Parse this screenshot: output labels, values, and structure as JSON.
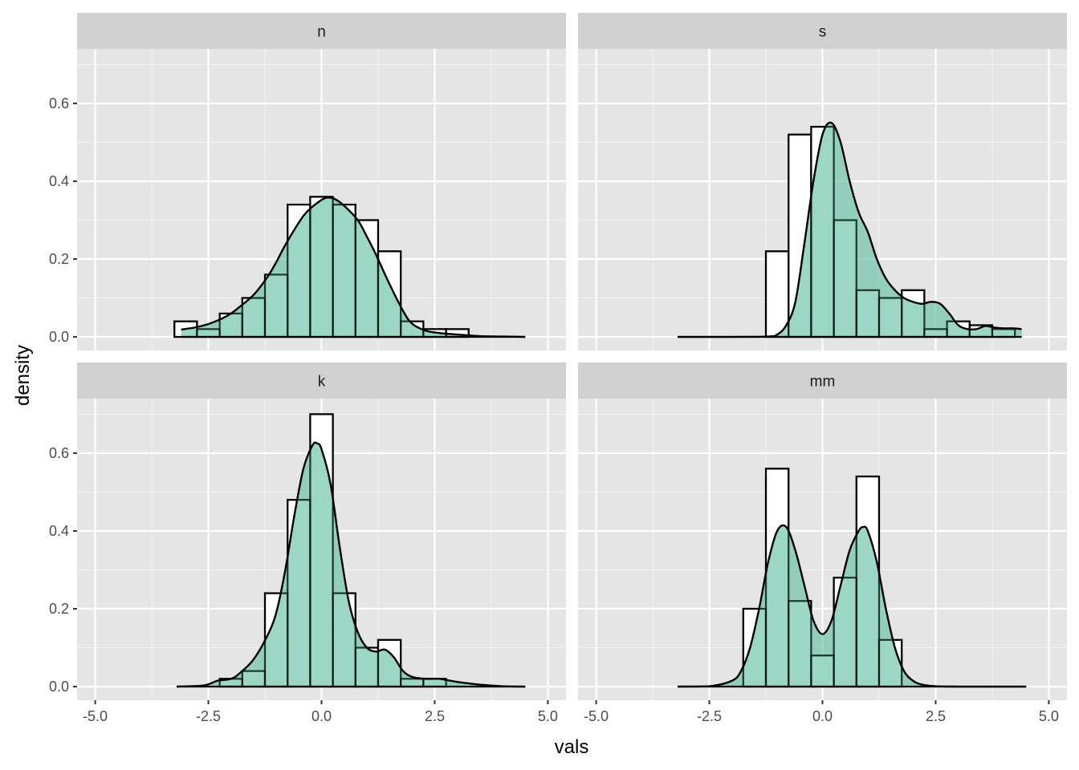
{
  "chart_data": {
    "type": "histogram-density-facets",
    "xlabel": "vals",
    "ylabel": "density",
    "xlim": [
      -5.4,
      5.4
    ],
    "ylim": [
      -0.035,
      0.74
    ],
    "x_ticks": [
      -5,
      -2.5,
      0,
      2.5,
      5
    ],
    "x_tick_labels": [
      "-5.0",
      "-2.5",
      "0.0",
      "2.5",
      "5.0"
    ],
    "y_ticks": [
      0,
      0.2,
      0.4,
      0.6
    ],
    "y_tick_labels": [
      "0.0",
      "0.2",
      "0.4",
      "0.6"
    ],
    "bin_width": 0.5,
    "bin_starts": [
      -3.25,
      -2.75,
      -2.25,
      -1.75,
      -1.25,
      -0.75,
      -0.25,
      0.25,
      0.75,
      1.25,
      1.75,
      2.25,
      2.75,
      3.25,
      3.75,
      4.25
    ],
    "density_fill": "#66c2a5",
    "density_fill_opacity": 0.65,
    "panel_background": "#e5e5e5",
    "strip_background": "#d1d1d1",
    "panels": [
      {
        "label": "n",
        "histogram": [
          0.04,
          0.02,
          0.06,
          0.1,
          0.16,
          0.34,
          0.36,
          0.34,
          0.3,
          0.22,
          0.04,
          0.02,
          0.02,
          0,
          0,
          0
        ],
        "density": {
          "x": [
            -3.1,
            -2.8,
            -2.5,
            -2.2,
            -2.0,
            -1.8,
            -1.5,
            -1.2,
            -1.0,
            -0.8,
            -0.5,
            -0.3,
            0.0,
            0.15,
            0.3,
            0.5,
            0.8,
            1.0,
            1.2,
            1.5,
            1.8,
            2.0,
            2.3,
            2.6,
            3.0,
            3.5,
            4.0,
            4.5
          ],
          "y": [
            0.019,
            0.024,
            0.033,
            0.047,
            0.06,
            0.078,
            0.108,
            0.153,
            0.192,
            0.236,
            0.294,
            0.324,
            0.352,
            0.358,
            0.354,
            0.337,
            0.3,
            0.258,
            0.212,
            0.136,
            0.067,
            0.034,
            0.016,
            0.01,
            0.006,
            0.002,
            0.001,
            0.0
          ]
        }
      },
      {
        "label": "s",
        "histogram": [
          0,
          0,
          0,
          0,
          0.22,
          0.52,
          0.54,
          0.3,
          0.12,
          0.1,
          0.12,
          0.02,
          0.04,
          0.03,
          0.02,
          0
        ],
        "density": {
          "x": [
            -3.2,
            -2.0,
            -1.2,
            -1.0,
            -0.8,
            -0.6,
            -0.4,
            -0.2,
            0.0,
            0.2,
            0.4,
            0.6,
            0.8,
            1.0,
            1.2,
            1.4,
            1.6,
            1.8,
            2.0,
            2.2,
            2.4,
            2.6,
            2.8,
            3.0,
            3.2,
            3.4,
            3.6,
            3.8,
            4.0,
            4.2,
            4.4
          ],
          "y": [
            0.0,
            0.0,
            0.001,
            0.006,
            0.03,
            0.09,
            0.24,
            0.4,
            0.52,
            0.55,
            0.5,
            0.4,
            0.32,
            0.27,
            0.2,
            0.15,
            0.12,
            0.1,
            0.09,
            0.085,
            0.09,
            0.085,
            0.06,
            0.03,
            0.02,
            0.02,
            0.028,
            0.024,
            0.022,
            0.022,
            0.02
          ]
        }
      },
      {
        "label": "k",
        "histogram": [
          0,
          0,
          0.02,
          0.04,
          0.24,
          0.48,
          0.7,
          0.24,
          0.1,
          0.12,
          0.02,
          0.02,
          0,
          0,
          0,
          0
        ],
        "density": {
          "x": [
            -3.2,
            -2.6,
            -2.3,
            -2.0,
            -1.8,
            -1.5,
            -1.2,
            -1.0,
            -0.8,
            -0.6,
            -0.4,
            -0.2,
            -0.1,
            0.0,
            0.2,
            0.4,
            0.6,
            0.8,
            1.0,
            1.2,
            1.4,
            1.6,
            1.8,
            2.0,
            2.3,
            2.6,
            3.0,
            3.5,
            4.0,
            4.5
          ],
          "y": [
            0.0,
            0.003,
            0.015,
            0.02,
            0.035,
            0.07,
            0.13,
            0.19,
            0.3,
            0.44,
            0.56,
            0.62,
            0.625,
            0.61,
            0.52,
            0.36,
            0.22,
            0.14,
            0.1,
            0.09,
            0.095,
            0.075,
            0.04,
            0.025,
            0.02,
            0.02,
            0.012,
            0.005,
            0.001,
            0.0
          ]
        }
      },
      {
        "label": "mm",
        "histogram": [
          0,
          0,
          0,
          0.2,
          0.56,
          0.22,
          0.08,
          0.28,
          0.54,
          0.12,
          0,
          0,
          0,
          0,
          0,
          0
        ],
        "density": {
          "x": [
            -3.2,
            -2.5,
            -2.0,
            -1.8,
            -1.6,
            -1.4,
            -1.2,
            -1.0,
            -0.8,
            -0.6,
            -0.4,
            -0.2,
            0.0,
            0.2,
            0.4,
            0.6,
            0.8,
            0.9,
            1.0,
            1.2,
            1.4,
            1.6,
            1.8,
            2.0,
            2.2,
            2.5,
            3.0,
            4.0,
            4.5
          ],
          "y": [
            0.0,
            0.001,
            0.015,
            0.04,
            0.1,
            0.2,
            0.32,
            0.4,
            0.41,
            0.35,
            0.26,
            0.17,
            0.135,
            0.17,
            0.26,
            0.35,
            0.4,
            0.41,
            0.4,
            0.32,
            0.2,
            0.1,
            0.04,
            0.015,
            0.005,
            0.001,
            0.0,
            0.0,
            0.0
          ]
        }
      }
    ]
  }
}
